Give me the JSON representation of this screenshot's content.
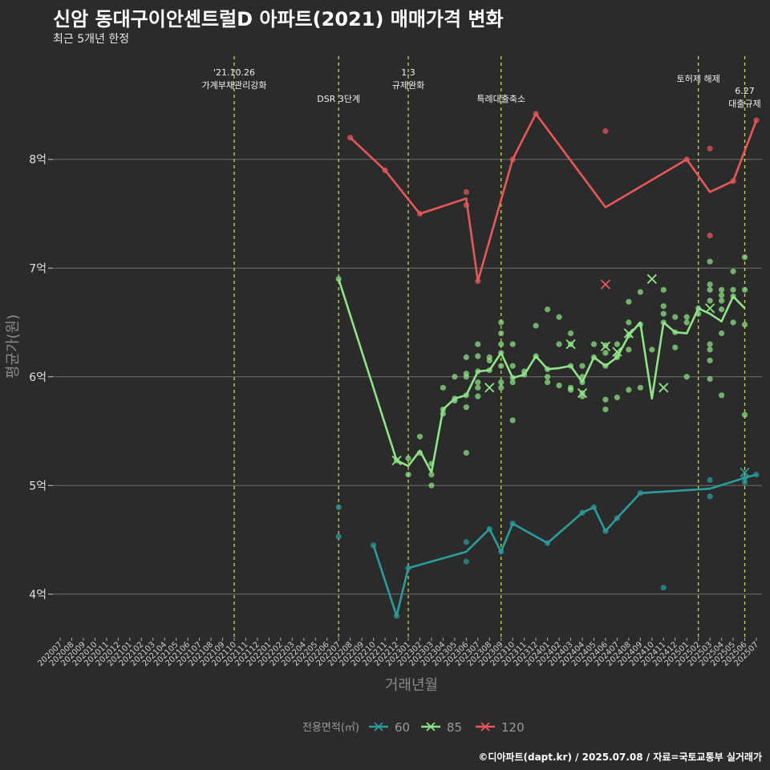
{
  "title": "신암 동대구이안센트럴D 아파트(2021) 매매가격 변화",
  "subtitle": "최근 5개년 한정",
  "caption": "©디아파트(dapt.kr) / 2025.07.08 / 자료=국토교통부 실거래가",
  "colors": {
    "background": "#2b2b2b",
    "grid": "#6e6e6e",
    "event_line": "#d4e157",
    "s60": "#2a9d9a",
    "s85": "#8fe388",
    "s120": "#e8585a"
  },
  "chart_data": {
    "type": "line",
    "xlabel": "거래년월",
    "ylabel": "평균가(원)",
    "ylim_eok": [
      3.6,
      8.95
    ],
    "yticks": [
      {
        "value": 4,
        "label": "4억"
      },
      {
        "value": 5,
        "label": "5억"
      },
      {
        "value": 6,
        "label": "6억"
      },
      {
        "value": 7,
        "label": "7억"
      },
      {
        "value": 8,
        "label": "8억"
      }
    ],
    "x_months": [
      "202007",
      "202008",
      "202009",
      "202010",
      "202011",
      "202012",
      "202101",
      "202102",
      "202103",
      "202104",
      "202105",
      "202106",
      "202107",
      "202108",
      "202109",
      "202110",
      "202111",
      "202112",
      "202201",
      "202202",
      "202203",
      "202204",
      "202205",
      "202206",
      "202207",
      "202208",
      "202209",
      "202210",
      "202211",
      "202212",
      "202301",
      "202302",
      "202303",
      "202304",
      "202305",
      "202306",
      "202307",
      "202308",
      "202309",
      "202310",
      "202311",
      "202312",
      "202401",
      "202402",
      "202403",
      "202404",
      "202405",
      "202406",
      "202407",
      "202408",
      "202409",
      "202410",
      "202411",
      "202412",
      "202501",
      "202502",
      "202503",
      "202504",
      "202505",
      "202506",
      "202507"
    ],
    "events": [
      {
        "month": "202110",
        "lines": [
          "'21.10.26",
          "가계부채관리강화"
        ],
        "row": 0
      },
      {
        "month": "202207",
        "lines": [
          "DSR 3단계"
        ],
        "row": 2
      },
      {
        "month": "202301",
        "lines": [
          "1.3",
          "규제완화"
        ],
        "row": 0
      },
      {
        "month": "202309",
        "lines": [
          "특례대출축소"
        ],
        "row": 2
      },
      {
        "month": "202502",
        "lines": [
          "토허제 해제"
        ],
        "row": 1
      },
      {
        "month": "202506",
        "lines": [
          "6.27",
          "대출규제"
        ],
        "row": 1.8
      }
    ],
    "legend": {
      "title": "전용면적(㎡)",
      "items": [
        "60",
        "85",
        "120"
      ]
    },
    "series": [
      {
        "name": "60",
        "color_key": "s60",
        "line": [
          [
            "202210",
            4.45
          ],
          [
            "202212",
            3.8
          ],
          [
            "202301",
            4.24
          ],
          [
            "202306",
            4.39
          ],
          [
            "202308",
            4.6
          ],
          [
            "202309",
            4.39
          ],
          [
            "202310",
            4.65
          ],
          [
            "202401",
            4.47
          ],
          [
            "202404",
            4.75
          ],
          [
            "202405",
            4.8
          ],
          [
            "202406",
            4.58
          ],
          [
            "202407",
            4.7
          ],
          [
            "202409",
            4.93
          ],
          [
            "202503",
            4.97
          ],
          [
            "202506",
            5.07
          ],
          [
            "202507",
            5.1
          ]
        ],
        "points": [
          [
            "202207",
            4.8
          ],
          [
            "202207",
            4.53
          ],
          [
            "202210",
            4.45
          ],
          [
            "202212",
            3.8
          ],
          [
            "202301",
            4.24
          ],
          [
            "202306",
            4.48
          ],
          [
            "202306",
            4.3
          ],
          [
            "202308",
            4.6
          ],
          [
            "202309",
            4.39
          ],
          [
            "202310",
            4.65
          ],
          [
            "202401",
            4.47
          ],
          [
            "202404",
            4.75
          ],
          [
            "202405",
            4.8
          ],
          [
            "202406",
            4.58
          ],
          [
            "202407",
            4.7
          ],
          [
            "202409",
            4.93
          ],
          [
            "202411",
            4.06
          ],
          [
            "202503",
            5.05
          ],
          [
            "202503",
            4.9
          ],
          [
            "202506",
            5.07
          ],
          [
            "202506",
            5.03
          ],
          [
            "202507",
            5.1
          ]
        ],
        "crosses": [
          [
            "202506",
            5.12
          ]
        ]
      },
      {
        "name": "85",
        "color_key": "s85",
        "line": [
          [
            "202207",
            6.9
          ],
          [
            "202212",
            5.23
          ],
          [
            "202301",
            5.18
          ],
          [
            "202302",
            5.32
          ],
          [
            "202303",
            5.12
          ],
          [
            "202304",
            5.7
          ],
          [
            "202305",
            5.8
          ],
          [
            "202306",
            5.83
          ],
          [
            "202307",
            6.05
          ],
          [
            "202308",
            6.06
          ],
          [
            "202309",
            6.22
          ],
          [
            "202310",
            5.99
          ],
          [
            "202311",
            6.02
          ],
          [
            "202312",
            6.19
          ],
          [
            "202401",
            6.07
          ],
          [
            "202402",
            6.08
          ],
          [
            "202403",
            6.1
          ],
          [
            "202404",
            5.95
          ],
          [
            "202405",
            6.18
          ],
          [
            "202406",
            6.1
          ],
          [
            "202407",
            6.18
          ],
          [
            "202408",
            6.38
          ],
          [
            "202409",
            6.5
          ],
          [
            "202410",
            5.8
          ],
          [
            "202411",
            6.5
          ],
          [
            "202412",
            6.41
          ],
          [
            "202501",
            6.4
          ],
          [
            "202502",
            6.63
          ],
          [
            "202503",
            6.58
          ],
          [
            "202504",
            6.51
          ],
          [
            "202505",
            6.74
          ],
          [
            "202506",
            6.63
          ]
        ],
        "points": [
          [
            "202207",
            6.9
          ],
          [
            "202212",
            5.23
          ],
          [
            "202301",
            5.25
          ],
          [
            "202301",
            5.1
          ],
          [
            "202302",
            5.45
          ],
          [
            "202302",
            5.3
          ],
          [
            "202303",
            5.0
          ],
          [
            "202303",
            5.1
          ],
          [
            "202303",
            5.2
          ],
          [
            "202304",
            5.7
          ],
          [
            "202304",
            5.66
          ],
          [
            "202304",
            5.9
          ],
          [
            "202305",
            5.8
          ],
          [
            "202305",
            5.78
          ],
          [
            "202305",
            6.0
          ],
          [
            "202306",
            5.83
          ],
          [
            "202306",
            5.72
          ],
          [
            "202306",
            5.3
          ],
          [
            "202306",
            6.03
          ],
          [
            "202306",
            6.18
          ],
          [
            "202306",
            6.0
          ],
          [
            "202307",
            6.05
          ],
          [
            "202307",
            5.9
          ],
          [
            "202307",
            5.82
          ],
          [
            "202307",
            6.3
          ],
          [
            "202307",
            6.19
          ],
          [
            "202307",
            5.95
          ],
          [
            "202308",
            6.06
          ],
          [
            "202308",
            6.18
          ],
          [
            "202308",
            6.15
          ],
          [
            "202309",
            6.5
          ],
          [
            "202309",
            6.4
          ],
          [
            "202309",
            6.3
          ],
          [
            "202309",
            6.22
          ],
          [
            "202309",
            6.1
          ],
          [
            "202309",
            5.95
          ],
          [
            "202309",
            5.9
          ],
          [
            "202310",
            6.3
          ],
          [
            "202310",
            6.1
          ],
          [
            "202310",
            5.95
          ],
          [
            "202310",
            5.6
          ],
          [
            "202310",
            5.99
          ],
          [
            "202311",
            6.02
          ],
          [
            "202311",
            6.05
          ],
          [
            "202312",
            6.47
          ],
          [
            "202312",
            6.19
          ],
          [
            "202401",
            6.62
          ],
          [
            "202401",
            6.0
          ],
          [
            "202401",
            5.95
          ],
          [
            "202401",
            6.07
          ],
          [
            "202402",
            6.55
          ],
          [
            "202402",
            5.92
          ],
          [
            "202402",
            6.3
          ],
          [
            "202403",
            6.4
          ],
          [
            "202403",
            6.3
          ],
          [
            "202403",
            6.1
          ],
          [
            "202403",
            5.9
          ],
          [
            "202403",
            5.88
          ],
          [
            "202404",
            6.1
          ],
          [
            "202404",
            6.0
          ],
          [
            "202404",
            5.95
          ],
          [
            "202404",
            5.85
          ],
          [
            "202404",
            5.82
          ],
          [
            "202405",
            6.3
          ],
          [
            "202405",
            6.18
          ],
          [
            "202406",
            6.29
          ],
          [
            "202406",
            6.22
          ],
          [
            "202406",
            6.1
          ],
          [
            "202406",
            5.79
          ],
          [
            "202406",
            5.7
          ],
          [
            "202407",
            6.3
          ],
          [
            "202407",
            6.2
          ],
          [
            "202407",
            6.18
          ],
          [
            "202407",
            5.81
          ],
          [
            "202408",
            6.69
          ],
          [
            "202408",
            6.5
          ],
          [
            "202408",
            6.38
          ],
          [
            "202408",
            6.25
          ],
          [
            "202408",
            5.88
          ],
          [
            "202409",
            6.78
          ],
          [
            "202409",
            6.48
          ],
          [
            "202409",
            5.9
          ],
          [
            "202410",
            6.25
          ],
          [
            "202411",
            6.8
          ],
          [
            "202411",
            6.65
          ],
          [
            "202411",
            6.58
          ],
          [
            "202411",
            6.5
          ],
          [
            "202412",
            6.55
          ],
          [
            "202412",
            6.27
          ],
          [
            "202412",
            6.41
          ],
          [
            "202501",
            6.55
          ],
          [
            "202501",
            6.5
          ],
          [
            "202501",
            6.0
          ],
          [
            "202502",
            6.63
          ],
          [
            "202502",
            6.58
          ],
          [
            "202503",
            7.06
          ],
          [
            "202503",
            6.85
          ],
          [
            "202503",
            6.8
          ],
          [
            "202503",
            6.7
          ],
          [
            "202503",
            6.3
          ],
          [
            "202503",
            6.25
          ],
          [
            "202503",
            6.15
          ],
          [
            "202503",
            5.98
          ],
          [
            "202504",
            6.8
          ],
          [
            "202504",
            6.75
          ],
          [
            "202504",
            6.7
          ],
          [
            "202504",
            6.62
          ],
          [
            "202504",
            6.4
          ],
          [
            "202504",
            5.83
          ],
          [
            "202505",
            6.97
          ],
          [
            "202505",
            6.8
          ],
          [
            "202505",
            6.74
          ],
          [
            "202505",
            6.5
          ],
          [
            "202506",
            7.1
          ],
          [
            "202506",
            6.8
          ],
          [
            "202506",
            6.48
          ],
          [
            "202506",
            5.65
          ]
        ],
        "crosses": [
          [
            "202212",
            5.23
          ],
          [
            "202308",
            5.9
          ],
          [
            "202403",
            6.3
          ],
          [
            "202404",
            5.85
          ],
          [
            "202406",
            6.28
          ],
          [
            "202407",
            6.23
          ],
          [
            "202408",
            6.4
          ],
          [
            "202410",
            6.9
          ],
          [
            "202411",
            5.9
          ],
          [
            "202503",
            6.63
          ]
        ]
      },
      {
        "name": "120",
        "color_key": "s120",
        "line": [
          [
            "202208",
            8.2
          ],
          [
            "202211",
            7.9
          ],
          [
            "202302",
            7.5
          ],
          [
            "202306",
            7.64
          ],
          [
            "202307",
            6.88
          ],
          [
            "202310",
            8.0
          ],
          [
            "202312",
            8.42
          ],
          [
            "202406",
            7.56
          ],
          [
            "202501",
            8.0
          ],
          [
            "202503",
            7.7
          ],
          [
            "202505",
            7.8
          ],
          [
            "202507",
            8.36
          ]
        ],
        "points": [
          [
            "202208",
            8.2
          ],
          [
            "202211",
            7.9
          ],
          [
            "202302",
            7.5
          ],
          [
            "202306",
            7.7
          ],
          [
            "202306",
            7.58
          ],
          [
            "202307",
            6.88
          ],
          [
            "202310",
            8.0
          ],
          [
            "202312",
            8.42
          ],
          [
            "202406",
            8.26
          ],
          [
            "202501",
            8.0
          ],
          [
            "202503",
            8.1
          ],
          [
            "202503",
            7.3
          ],
          [
            "202505",
            7.8
          ],
          [
            "202507",
            8.36
          ]
        ],
        "crosses": [
          [
            "202406",
            6.85
          ]
        ]
      }
    ]
  }
}
